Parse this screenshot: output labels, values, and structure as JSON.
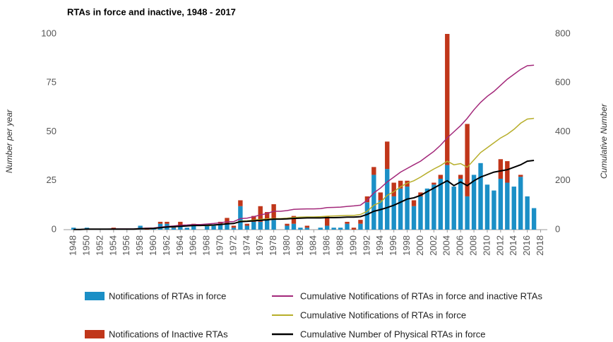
{
  "chart_data": {
    "type": "bar",
    "stacked": true,
    "title": "RTAs in force and inactive, 1948 - 2017",
    "y_label": "Number per year",
    "y2_label": "Cumulative Number",
    "x": [
      1948,
      1949,
      1950,
      1951,
      1952,
      1953,
      1954,
      1955,
      1956,
      1957,
      1958,
      1959,
      1960,
      1961,
      1962,
      1963,
      1964,
      1965,
      1966,
      1967,
      1968,
      1969,
      1970,
      1971,
      1972,
      1973,
      1974,
      1975,
      1976,
      1977,
      1978,
      1979,
      1980,
      1981,
      1982,
      1983,
      1984,
      1985,
      1986,
      1987,
      1988,
      1989,
      1990,
      1991,
      1992,
      1993,
      1994,
      1995,
      1996,
      1997,
      1998,
      1999,
      2000,
      2001,
      2002,
      2003,
      2004,
      2005,
      2006,
      2007,
      2008,
      2009,
      2010,
      2011,
      2012,
      2013,
      2014,
      2015,
      2016,
      2017
    ],
    "xlim": [
      1946.5,
      2019
    ],
    "xticks": [
      1948,
      1950,
      1952,
      1954,
      1956,
      1958,
      1960,
      1962,
      1964,
      1966,
      1968,
      1970,
      1972,
      1974,
      1976,
      1978,
      1980,
      1982,
      1984,
      1986,
      1988,
      1990,
      1992,
      1994,
      1996,
      1998,
      2000,
      2002,
      2004,
      2006,
      2008,
      2010,
      2012,
      2014,
      2016,
      2018
    ],
    "ylim": [
      0,
      100
    ],
    "yticks": [
      0,
      25,
      50,
      75,
      100
    ],
    "y2lim": [
      0,
      800
    ],
    "y2ticks": [
      0,
      200,
      400,
      600,
      800
    ],
    "series": [
      {
        "name": "Notifications of RTAs in force",
        "type": "bar",
        "color": "#1b8fc6",
        "values": [
          1,
          0,
          1,
          0,
          0,
          0,
          0,
          0,
          0,
          0,
          2,
          0,
          1,
          3,
          3,
          1,
          2,
          1,
          2,
          0,
          2,
          2,
          3,
          3,
          1,
          12,
          2,
          4,
          4,
          5,
          5,
          0,
          2,
          3,
          1,
          1,
          0,
          1,
          2,
          1,
          1,
          3,
          0,
          3,
          14,
          28,
          15,
          31,
          17,
          21,
          22,
          12,
          17,
          21,
          23,
          26,
          33,
          22,
          26,
          17,
          28,
          34,
          23,
          20,
          26,
          24,
          22,
          27,
          17,
          11
        ]
      },
      {
        "name": "Notifications of Inactive RTAs",
        "type": "bar",
        "color": "#c0361a",
        "values": [
          0,
          0,
          0,
          0,
          0,
          0,
          1,
          0,
          0,
          0,
          0,
          1,
          0,
          1,
          1,
          1,
          2,
          0,
          1,
          0,
          0,
          0,
          1,
          3,
          1,
          3,
          1,
          3,
          8,
          4,
          8,
          0,
          1,
          4,
          0,
          1,
          0,
          0,
          5,
          0,
          0,
          1,
          1,
          2,
          3,
          4,
          4,
          14,
          7,
          4,
          3,
          3,
          2,
          0,
          1,
          2,
          67,
          0,
          2,
          37,
          0,
          0,
          0,
          0,
          10,
          11,
          0,
          1,
          0,
          0
        ]
      },
      {
        "name": "Cumulative Notifications of RTAs in force and inactive RTAs",
        "type": "line",
        "axis": "y2",
        "color": "#a3287a",
        "values": [
          1,
          1,
          2,
          2,
          2,
          2,
          3,
          3,
          3,
          3,
          5,
          6,
          7,
          10,
          13,
          15,
          18,
          19,
          21,
          21,
          23,
          25,
          28,
          32,
          33,
          45,
          47,
          53,
          60,
          66,
          75,
          75,
          78,
          83,
          84,
          85,
          85,
          86,
          90,
          91,
          92,
          95,
          97,
          100,
          120,
          150,
          170,
          195,
          215,
          235,
          250,
          265,
          280,
          300,
          320,
          345,
          375,
          400,
          425,
          455,
          490,
          520,
          545,
          565,
          590,
          615,
          635,
          655,
          670,
          672
        ]
      },
      {
        "name": "Cumulative Notifications of RTAs in force",
        "type": "line",
        "axis": "y2",
        "color": "#b7ae2a",
        "values": [
          1,
          1,
          2,
          2,
          2,
          2,
          2,
          2,
          2,
          2,
          4,
          4,
          5,
          8,
          11,
          12,
          14,
          15,
          17,
          17,
          16,
          18,
          21,
          24,
          25,
          35,
          36,
          39,
          42,
          44,
          45,
          45,
          47,
          50,
          51,
          52,
          52,
          53,
          55,
          56,
          57,
          58,
          58,
          62,
          75,
          100,
          112,
          140,
          155,
          175,
          190,
          200,
          215,
          232,
          248,
          262,
          280,
          265,
          270,
          255,
          285,
          315,
          335,
          355,
          375,
          390,
          410,
          435,
          452,
          455
        ]
      },
      {
        "name": "Cumulative Number of Physical RTAs in force",
        "type": "line",
        "axis": "y2",
        "color": "#000000",
        "values": [
          1,
          1,
          2,
          2,
          2,
          2,
          2,
          2,
          2,
          2,
          4,
          4,
          5,
          8,
          11,
          12,
          14,
          15,
          17,
          17,
          18,
          19,
          21,
          24,
          25,
          33,
          34,
          36,
          38,
          40,
          43,
          43,
          44,
          46,
          47,
          48,
          48,
          48,
          49,
          49,
          50,
          51,
          51,
          53,
          62,
          75,
          82,
          90,
          100,
          112,
          125,
          130,
          140,
          155,
          170,
          185,
          200,
          180,
          195,
          180,
          200,
          215,
          225,
          235,
          240,
          245,
          255,
          265,
          280,
          283
        ]
      }
    ]
  }
}
